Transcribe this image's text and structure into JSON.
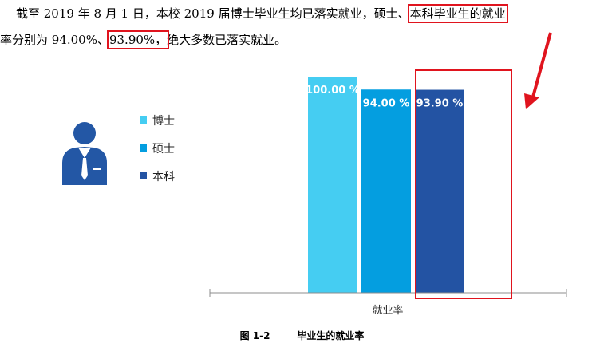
{
  "paragraph": {
    "line1_part1": "截至 2019 年 8 月 1 日，本校 2019 届博士毕业生均已落实就业，硕士、",
    "line1_boxed": "本科毕业生的就业",
    "line2_part1": "率分别为 94.00%、",
    "line2_boxed": "93.90%，",
    "line2_part2": "绝大多数已落实就业。"
  },
  "icon": {
    "name": "businessman-icon",
    "color": "#2357a5"
  },
  "caption": {
    "number": "图 1-2",
    "title": "毕业生的就业率"
  },
  "annotation_color": "#e0141e",
  "chart_data": {
    "type": "bar",
    "categories": [
      "就业率"
    ],
    "series": [
      {
        "name": "博士",
        "values": [
          100.0
        ],
        "label": "100.00 %",
        "color": "#45cdf2"
      },
      {
        "name": "硕士",
        "values": [
          94.0
        ],
        "label": "94.00 %",
        "color": "#049ee0"
      },
      {
        "name": "本科",
        "values": [
          93.9
        ],
        "label": "93.90 %",
        "color": "#2353a3"
      }
    ],
    "ylim": [
      0,
      100
    ],
    "legend": "left",
    "grid": false
  }
}
